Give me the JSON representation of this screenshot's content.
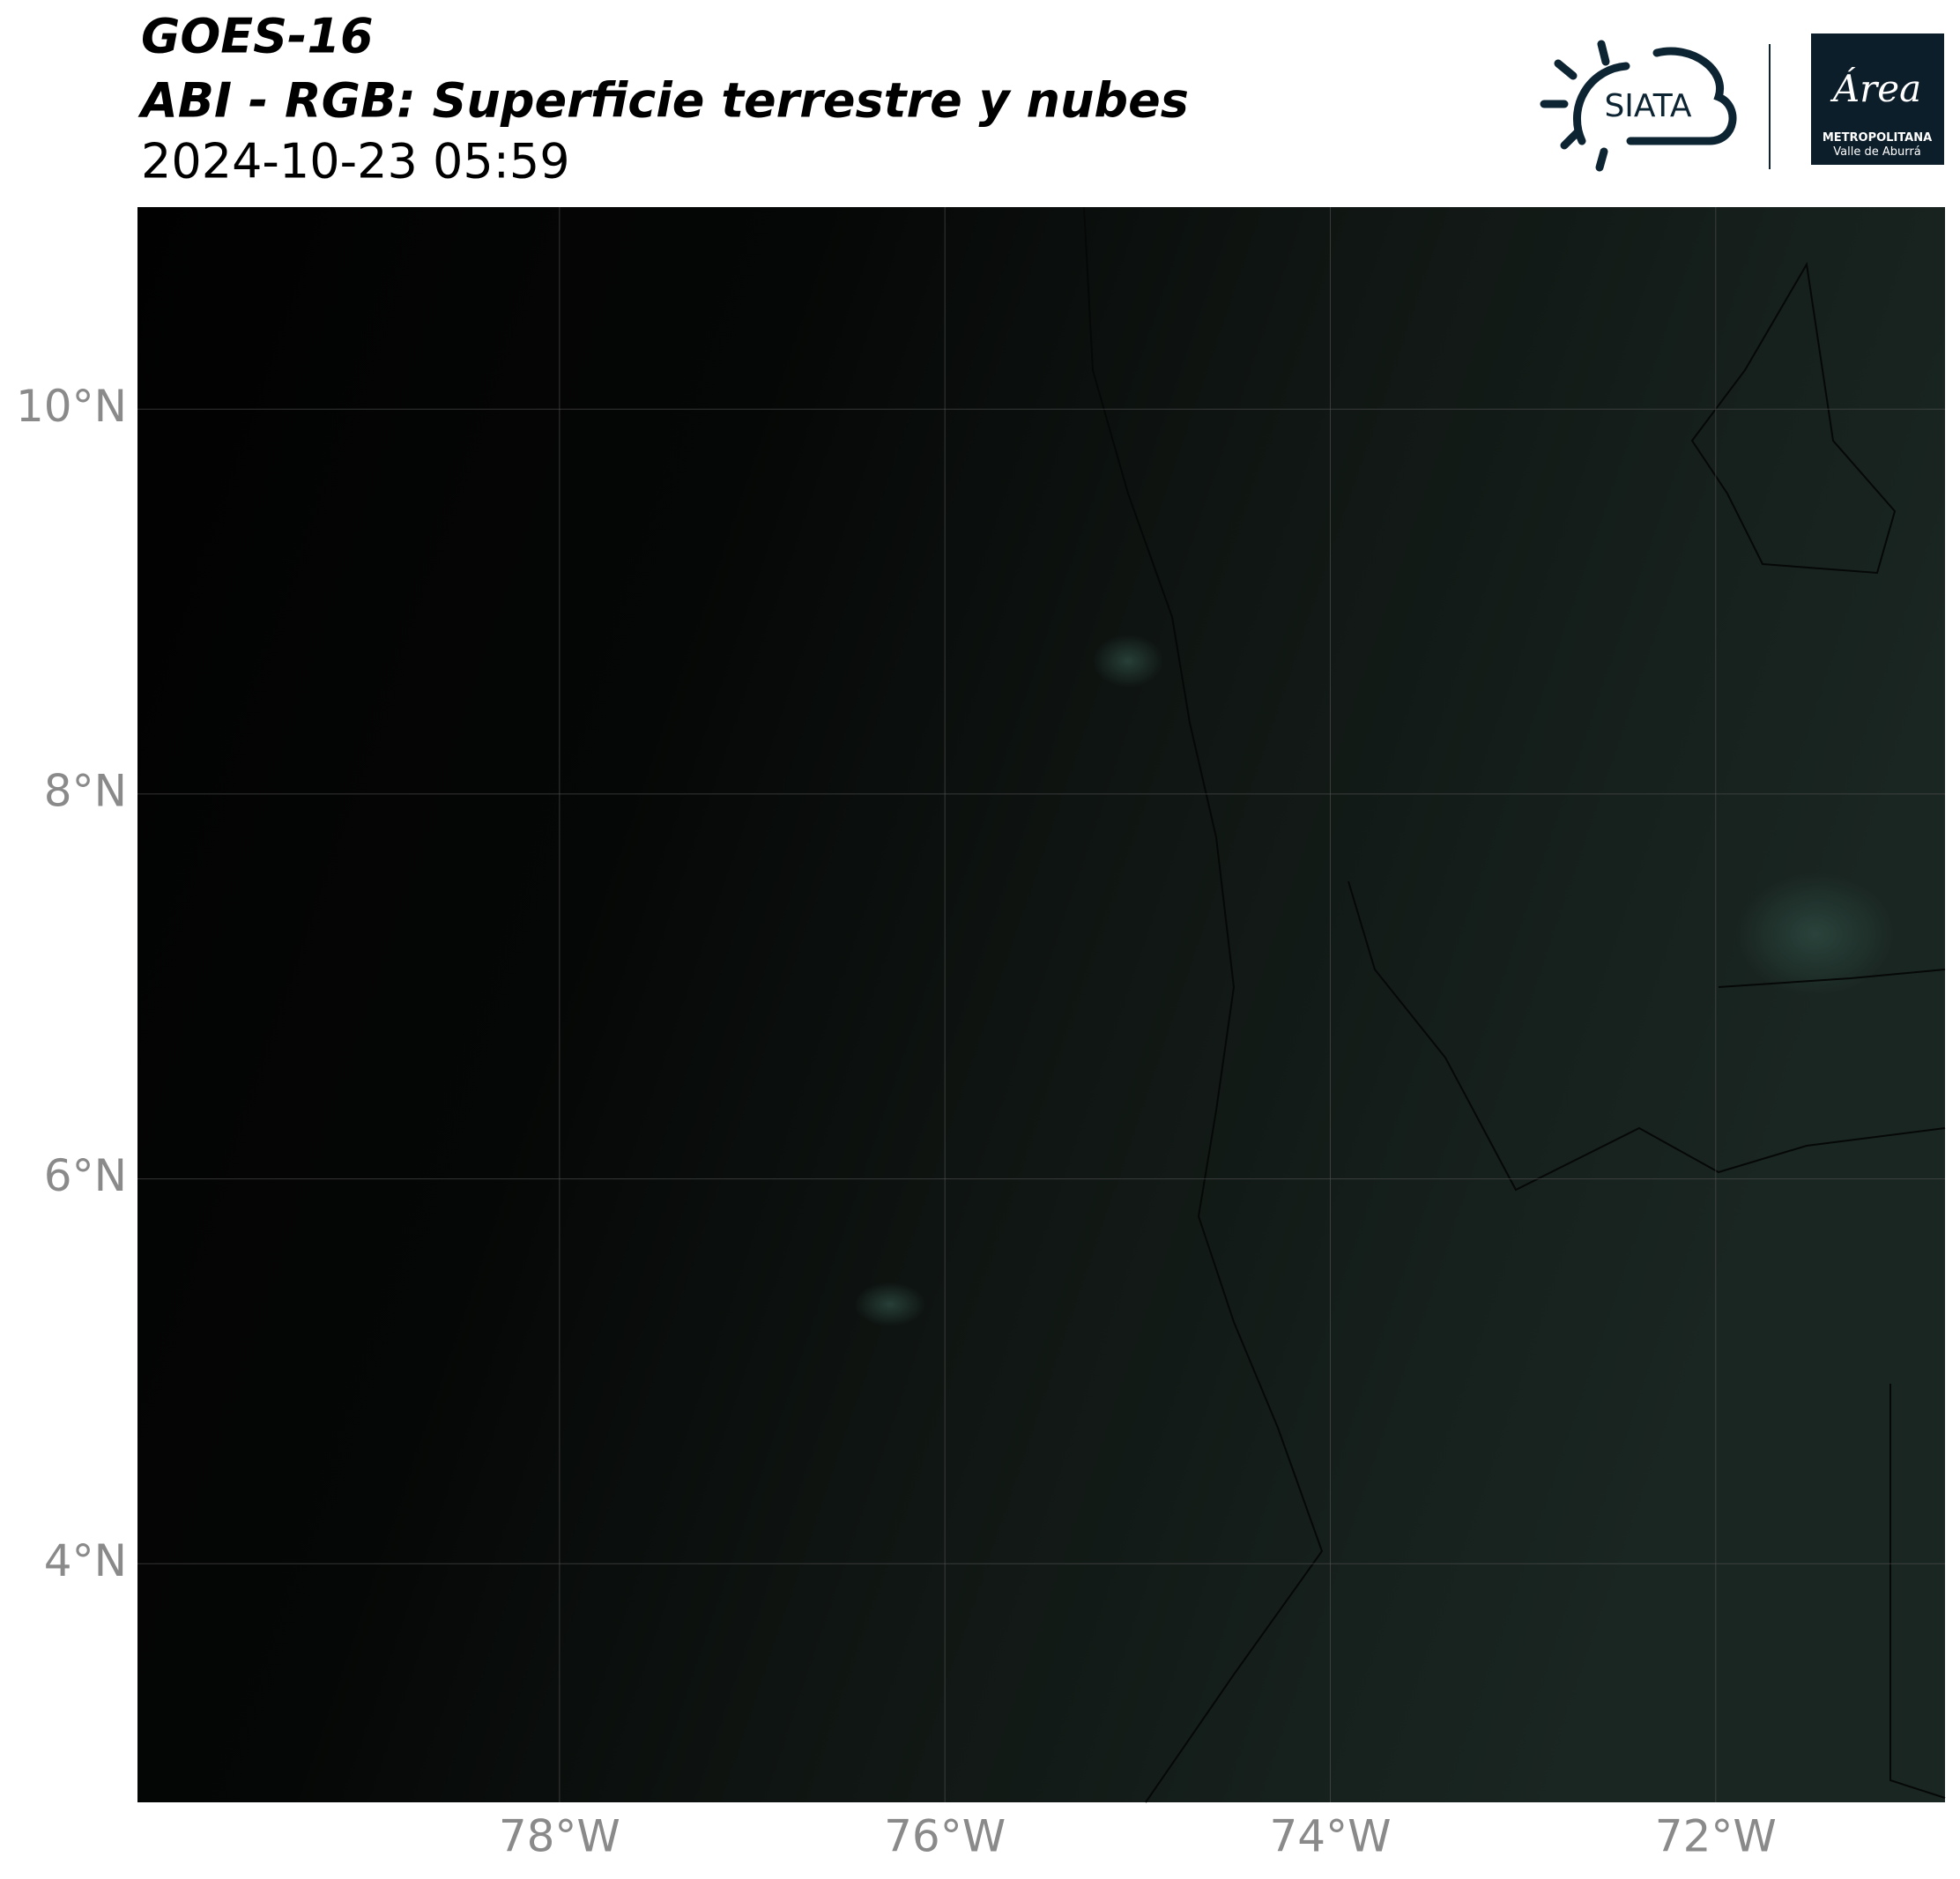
{
  "header": {
    "title": "GOES-16",
    "subtitle": "ABI - RGB: Superficie terrestre y nubes",
    "date": "2024-10-23 05:59"
  },
  "logos": {
    "siata": "SIATA",
    "area": "Área",
    "area_line1": "METROPOLITANA",
    "area_line2": "Valle de Aburrá"
  },
  "map": {
    "xlim": [
      -80.19,
      -70.81
    ],
    "ylim": [
      2.76,
      11.05
    ],
    "xticks": [
      {
        "value": -78,
        "label": "78°W"
      },
      {
        "value": -76,
        "label": "76°W"
      },
      {
        "value": -74,
        "label": "74°W"
      },
      {
        "value": -72,
        "label": "72°W"
      }
    ],
    "yticks": [
      {
        "value": 4,
        "label": "4°N"
      },
      {
        "value": 6,
        "label": "6°N"
      },
      {
        "value": 8,
        "label": "8°N"
      },
      {
        "value": 10,
        "label": "10°N"
      }
    ],
    "grid": true
  }
}
